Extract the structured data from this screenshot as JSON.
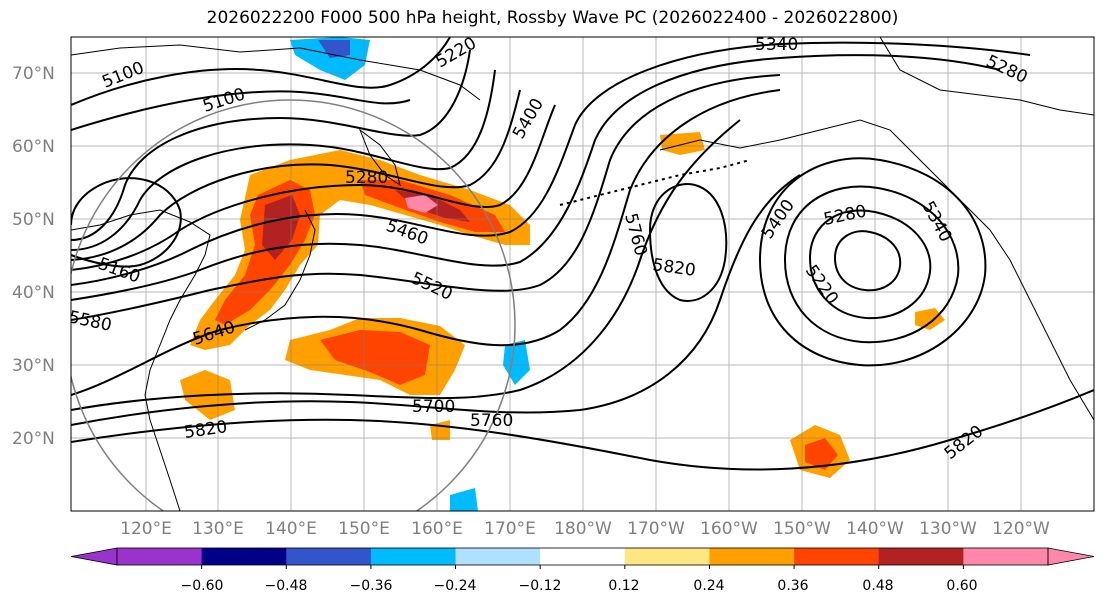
{
  "title": "2026022200 F000 500 hPa height, Rossby Wave PC (2026022400 - 2026022800)",
  "map": {
    "lat_labels": [
      "70°N",
      "60°N",
      "50°N",
      "40°N",
      "30°N",
      "20°N"
    ],
    "lon_labels": [
      "120°E",
      "130°E",
      "140°E",
      "150°E",
      "160°E",
      "170°E",
      "180°W",
      "170°W",
      "160°W",
      "150°W",
      "140°W",
      "130°W",
      "120°W"
    ],
    "contour_labels": [
      "5100",
      "5100",
      "5220",
      "5340",
      "5280",
      "5400",
      "5280",
      "5460",
      "5520",
      "5160",
      "5580",
      "5640",
      "5760",
      "5820",
      "5400",
      "5280",
      "5340",
      "5220",
      "5700",
      "5760",
      "5820",
      "5820"
    ]
  },
  "colorbar": {
    "ticks": [
      "−0.60",
      "−0.48",
      "−0.36",
      "−0.24",
      "−0.12",
      "0.12",
      "0.24",
      "0.36",
      "0.48",
      "0.60"
    ],
    "colors": [
      "#9933cc",
      "#000088",
      "#3355cc",
      "#00bbff",
      "#b0e0ff",
      "#ffffff",
      "#ffe680",
      "#ffa000",
      "#ff4400",
      "#b22222",
      "#ff88aa"
    ]
  },
  "colors": {
    "land": "#ffffff",
    "contour": "#000000",
    "grid": "#808080"
  }
}
